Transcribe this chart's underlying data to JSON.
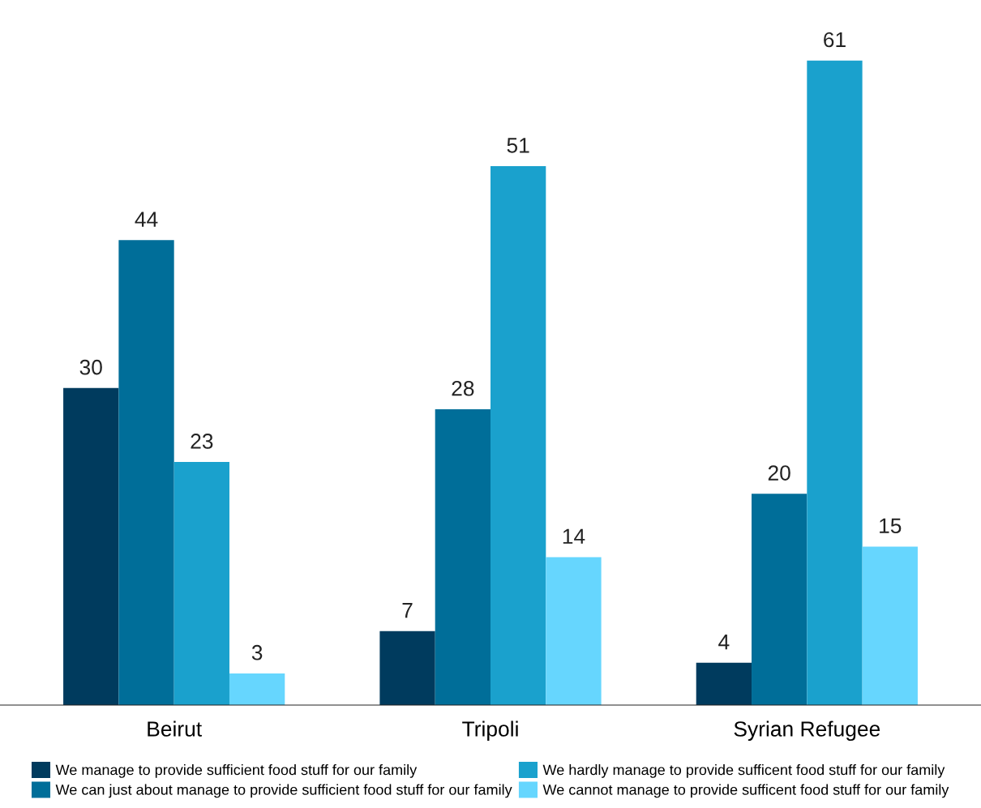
{
  "chart_data": {
    "type": "bar",
    "categories": [
      "Beirut",
      "Tripoli",
      "Syrian Refugee"
    ],
    "series": [
      {
        "name": "We manage to provide sufficient food stuff for our family",
        "color": "#003b5e",
        "values": [
          30,
          7,
          4
        ]
      },
      {
        "name": "We can just about manage to provide sufficient food stuff for our family",
        "color": "#006e99",
        "values": [
          44,
          28,
          20
        ]
      },
      {
        "name": "We hardly manage to provide sufficent food stuff for our family",
        "color": "#1aa1cd",
        "values": [
          23,
          51,
          61
        ]
      },
      {
        "name": "We cannot manage to provide sufficent food stuff for our family",
        "color": "#66d6fe",
        "values": [
          3,
          14,
          15
        ]
      }
    ],
    "data_labels": true,
    "grid": false,
    "legend": "bottom"
  }
}
